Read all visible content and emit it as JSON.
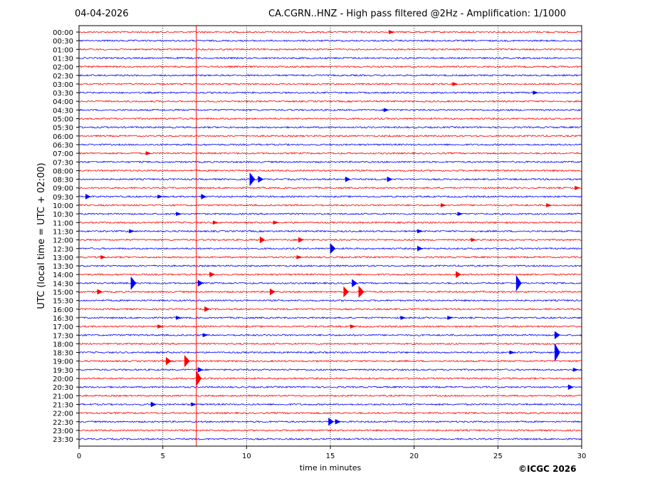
{
  "header": {
    "date": "04-04-2026",
    "title": "CA.CGRN..HNZ - High pass filtered @2Hz - Amplification: 1/1000",
    "copyright": "©ICGC 2026"
  },
  "chart_data": {
    "type": "line",
    "title": "CA.CGRN..HNZ - High pass filtered @2Hz - Amplification: 1/1000",
    "xlabel": "time in minutes",
    "ylabel": "UTC (local time = UTC + 02:00)",
    "xlim": [
      0,
      30
    ],
    "xticks": [
      0,
      5,
      10,
      15,
      20,
      25,
      30
    ],
    "grid": "vertical dotted lines at x ticks",
    "trace_colors": [
      "#ff0000",
      "#0000ff"
    ],
    "marker_line": {
      "x": 7.0,
      "color": "#ff0000"
    },
    "rows": [
      {
        "label": "00:00",
        "events": [
          {
            "x": 18.5,
            "amp": 0.3
          }
        ]
      },
      {
        "label": "00:30",
        "events": []
      },
      {
        "label": "01:00",
        "events": []
      },
      {
        "label": "01:30",
        "events": []
      },
      {
        "label": "02:00",
        "events": []
      },
      {
        "label": "02:30",
        "events": []
      },
      {
        "label": "03:00",
        "events": [
          {
            "x": 22.3,
            "amp": 0.3
          }
        ]
      },
      {
        "label": "03:30",
        "events": [
          {
            "x": 27.1,
            "amp": 0.3
          }
        ]
      },
      {
        "label": "04:00",
        "events": []
      },
      {
        "label": "04:30",
        "events": [
          {
            "x": 18.2,
            "amp": 0.3
          }
        ]
      },
      {
        "label": "05:00",
        "events": []
      },
      {
        "label": "05:30",
        "events": []
      },
      {
        "label": "06:00",
        "events": []
      },
      {
        "label": "06:30",
        "events": []
      },
      {
        "label": "07:00",
        "events": [
          {
            "x": 4.0,
            "amp": 0.3
          }
        ]
      },
      {
        "label": "07:30",
        "events": []
      },
      {
        "label": "08:00",
        "events": []
      },
      {
        "label": "08:30",
        "events": [
          {
            "x": 10.2,
            "amp": 1.0
          },
          {
            "x": 10.7,
            "amp": 0.5
          },
          {
            "x": 15.9,
            "amp": 0.4
          },
          {
            "x": 18.4,
            "amp": 0.4
          }
        ]
      },
      {
        "label": "09:00",
        "events": [
          {
            "x": 29.6,
            "amp": 0.3
          }
        ]
      },
      {
        "label": "09:30",
        "events": [
          {
            "x": 0.4,
            "amp": 0.4
          },
          {
            "x": 4.7,
            "amp": 0.3
          },
          {
            "x": 7.3,
            "amp": 0.4
          }
        ]
      },
      {
        "label": "10:00",
        "events": [
          {
            "x": 21.6,
            "amp": 0.3
          },
          {
            "x": 27.9,
            "amp": 0.3
          }
        ]
      },
      {
        "label": "10:30",
        "events": [
          {
            "x": 5.8,
            "amp": 0.3
          },
          {
            "x": 22.6,
            "amp": 0.3
          }
        ]
      },
      {
        "label": "11:00",
        "events": [
          {
            "x": 8.0,
            "amp": 0.3
          },
          {
            "x": 11.6,
            "amp": 0.3
          }
        ]
      },
      {
        "label": "11:30",
        "events": [
          {
            "x": 3.0,
            "amp": 0.3
          },
          {
            "x": 20.2,
            "amp": 0.3
          }
        ]
      },
      {
        "label": "12:00",
        "events": [
          {
            "x": 10.8,
            "amp": 0.5
          },
          {
            "x": 13.1,
            "amp": 0.4
          },
          {
            "x": 23.4,
            "amp": 0.3
          }
        ]
      },
      {
        "label": "12:30",
        "events": [
          {
            "x": 15.0,
            "amp": 0.8
          },
          {
            "x": 20.2,
            "amp": 0.4
          }
        ]
      },
      {
        "label": "13:00",
        "events": [
          {
            "x": 1.3,
            "amp": 0.3
          },
          {
            "x": 13.0,
            "amp": 0.3
          }
        ]
      },
      {
        "label": "13:30",
        "events": []
      },
      {
        "label": "14:00",
        "events": [
          {
            "x": 7.8,
            "amp": 0.4
          },
          {
            "x": 22.5,
            "amp": 0.5
          }
        ]
      },
      {
        "label": "14:30",
        "events": [
          {
            "x": 3.1,
            "amp": 1.0
          },
          {
            "x": 7.1,
            "amp": 0.5
          },
          {
            "x": 16.3,
            "amp": 0.6
          },
          {
            "x": 26.1,
            "amp": 1.2
          }
        ]
      },
      {
        "label": "15:00",
        "events": [
          {
            "x": 1.1,
            "amp": 0.4
          },
          {
            "x": 11.4,
            "amp": 0.5
          },
          {
            "x": 15.8,
            "amp": 0.8
          },
          {
            "x": 16.7,
            "amp": 0.9
          }
        ]
      },
      {
        "label": "15:30",
        "events": []
      },
      {
        "label": "16:00",
        "events": [
          {
            "x": 7.5,
            "amp": 0.4
          }
        ]
      },
      {
        "label": "16:30",
        "events": [
          {
            "x": 5.8,
            "amp": 0.3
          },
          {
            "x": 19.2,
            "amp": 0.3
          },
          {
            "x": 22.0,
            "amp": 0.3
          }
        ]
      },
      {
        "label": "17:00",
        "events": [
          {
            "x": 4.7,
            "amp": 0.3
          },
          {
            "x": 16.2,
            "amp": 0.3
          }
        ]
      },
      {
        "label": "17:30",
        "events": [
          {
            "x": 7.4,
            "amp": 0.3
          },
          {
            "x": 28.4,
            "amp": 0.6
          }
        ]
      },
      {
        "label": "18:00",
        "events": []
      },
      {
        "label": "18:30",
        "events": [
          {
            "x": 25.7,
            "amp": 0.3
          },
          {
            "x": 28.4,
            "amp": 1.4
          }
        ]
      },
      {
        "label": "19:00",
        "events": [
          {
            "x": 5.2,
            "amp": 0.6
          },
          {
            "x": 6.3,
            "amp": 0.9
          }
        ]
      },
      {
        "label": "19:30",
        "events": [
          {
            "x": 7.1,
            "amp": 0.4
          },
          {
            "x": 29.5,
            "amp": 0.3
          }
        ]
      },
      {
        "label": "20:00",
        "events": [
          {
            "x": 7.0,
            "amp": 1.2
          }
        ]
      },
      {
        "label": "20:30",
        "events": [
          {
            "x": 29.2,
            "amp": 0.4
          }
        ]
      },
      {
        "label": "21:00",
        "events": []
      },
      {
        "label": "21:30",
        "events": [
          {
            "x": 4.3,
            "amp": 0.4
          },
          {
            "x": 6.7,
            "amp": 0.3
          }
        ]
      },
      {
        "label": "22:00",
        "events": []
      },
      {
        "label": "22:30",
        "events": [
          {
            "x": 14.9,
            "amp": 0.6
          },
          {
            "x": 15.3,
            "amp": 0.4
          }
        ]
      },
      {
        "label": "23:00",
        "events": []
      },
      {
        "label": "23:30",
        "events": []
      }
    ]
  }
}
